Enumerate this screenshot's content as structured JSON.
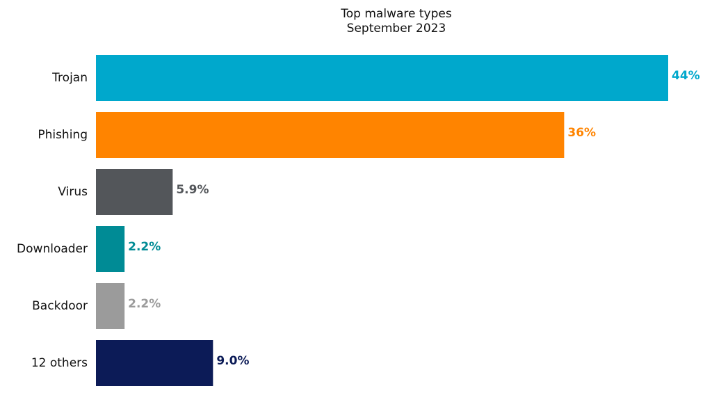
{
  "chart_data": {
    "type": "bar",
    "orientation": "horizontal",
    "title": "Top malware types",
    "subtitle": "September 2023",
    "xlabel": "",
    "ylabel": "",
    "xlim": [
      0,
      44
    ],
    "grid": false,
    "legend": "none",
    "categories": [
      "Trojan",
      "Phishing",
      "Virus",
      "Downloader",
      "Backdoor",
      "12 others"
    ],
    "values": [
      44,
      36,
      5.9,
      2.2,
      2.2,
      9.0
    ],
    "data_labels": [
      "44%",
      "36%",
      "5.9%",
      "2.2%",
      "2.2%",
      "9.0%"
    ],
    "colors": [
      "#00a8cc",
      "#ff8400",
      "#53565a",
      "#008b95",
      "#9b9b9b",
      "#0c1b57"
    ],
    "label_colors": [
      "#00a8cc",
      "#ff8400",
      "#53565a",
      "#008b95",
      "#9b9b9b",
      "#0c1b57"
    ]
  }
}
